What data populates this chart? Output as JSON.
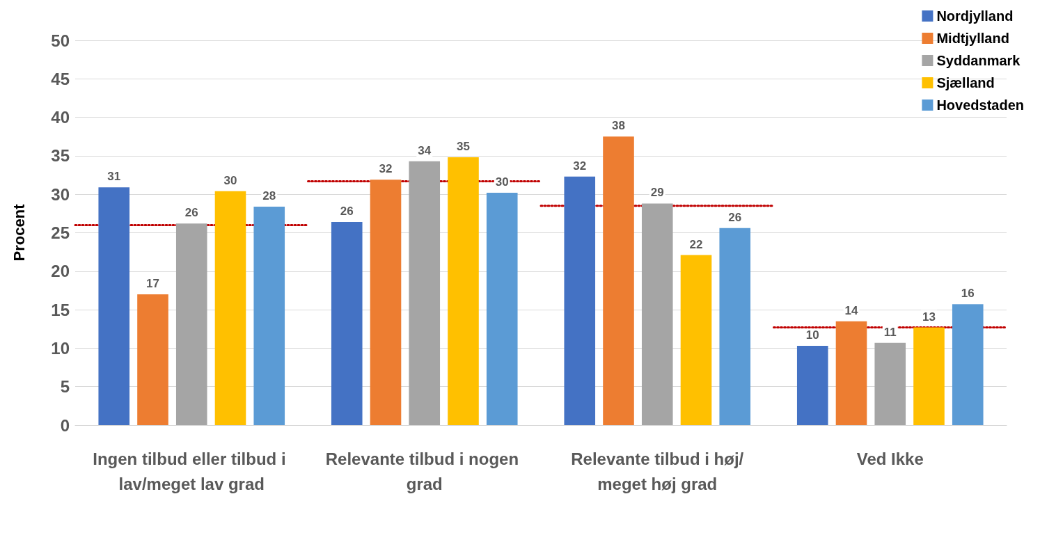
{
  "chart_data": {
    "type": "bar",
    "ylabel": "Procent",
    "categories": [
      "Ingen tilbud eller tilbud i lav/meget lav grad",
      "Relevante tilbud i nogen grad",
      "Relevante tilbud i høj/meget høj grad",
      "Ved Ikke"
    ],
    "series": [
      {
        "name": "Nordjylland",
        "color": "#4472c4",
        "values": [
          30.9,
          26.4,
          32.3,
          10.3
        ],
        "value_labels": [
          "31",
          "26",
          "32",
          "10"
        ]
      },
      {
        "name": "Midtjylland",
        "color": "#ed7d31",
        "values": [
          17.0,
          31.9,
          37.5,
          13.5
        ],
        "value_labels": [
          "17",
          "32",
          "38",
          "14"
        ]
      },
      {
        "name": "Syddanmark",
        "color": "#a5a5a5",
        "values": [
          26.2,
          34.3,
          28.8,
          10.7
        ],
        "value_labels": [
          "26",
          "34",
          "29",
          "11"
        ]
      },
      {
        "name": "Sjælland",
        "color": "#ffc000",
        "values": [
          30.4,
          34.8,
          22.1,
          12.7
        ],
        "value_labels": [
          "30",
          "35",
          "22",
          "13"
        ]
      },
      {
        "name": "Hovedstaden",
        "color": "#5b9bd5",
        "values": [
          28.4,
          30.2,
          25.6,
          15.7
        ],
        "value_labels": [
          "28",
          "30",
          "26",
          "16"
        ]
      }
    ],
    "ref_lines": [
      {
        "axis": "y",
        "value": 26.0,
        "label": null,
        "color": "#c00000",
        "line_style": "dotted"
      },
      {
        "axis": "y",
        "value": 31.7,
        "label": null,
        "color": "#c00000",
        "line_style": "dotted"
      },
      {
        "axis": "y",
        "value": 28.5,
        "label": null,
        "color": "#c00000",
        "line_style": "dotted"
      },
      {
        "axis": "y",
        "value": 12.7,
        "label": null,
        "color": "#c00000",
        "line_style": "dotted"
      }
    ],
    "ylim": [
      0,
      50
    ],
    "yticks": [
      0,
      5,
      10,
      15,
      20,
      25,
      30,
      35,
      40,
      45,
      50
    ],
    "grid": "y",
    "legend": "top right"
  }
}
